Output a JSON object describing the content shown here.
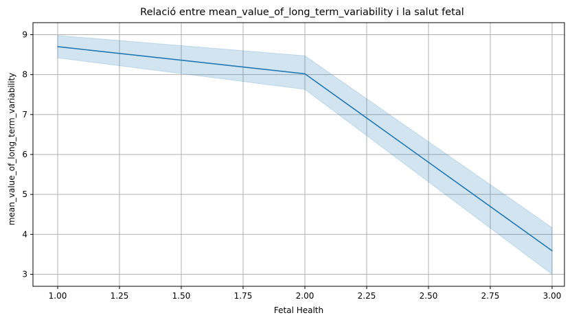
{
  "chart_data": {
    "type": "line",
    "title": "Relació entre mean_value_of_long_term_variability i la salut fetal",
    "xlabel": "Fetal Health",
    "ylabel": "mean_value_of_long_term_variability",
    "xlim": [
      0.9,
      3.05
    ],
    "ylim": [
      2.7,
      9.3
    ],
    "xticks": [
      "1.00",
      "1.25",
      "1.50",
      "1.75",
      "2.00",
      "2.25",
      "2.50",
      "2.75",
      "3.00"
    ],
    "xtick_values": [
      1.0,
      1.25,
      1.5,
      1.75,
      2.0,
      2.25,
      2.5,
      2.75,
      3.0
    ],
    "yticks": [
      "3",
      "4",
      "5",
      "6",
      "7",
      "8",
      "9"
    ],
    "ytick_values": [
      3,
      4,
      5,
      6,
      7,
      8,
      9
    ],
    "grid": true,
    "series": [
      {
        "x": [
          1.0,
          2.0,
          3.0
        ],
        "y": [
          8.7,
          8.02,
          3.59
        ],
        "ci_lower": [
          8.42,
          7.63,
          3.0
        ],
        "ci_upper": [
          8.98,
          8.47,
          4.17
        ],
        "color": "#1f77b4",
        "band_color": "#1f77b4"
      }
    ]
  }
}
